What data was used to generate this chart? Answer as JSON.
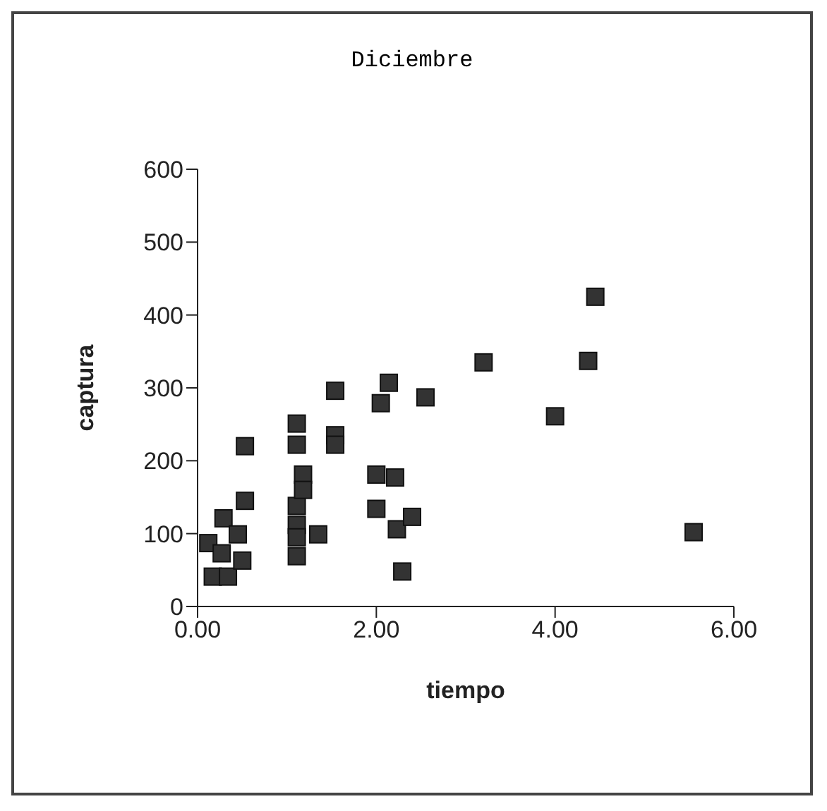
{
  "chart_data": {
    "type": "scatter",
    "title": "Diciembre",
    "xlabel": "tiempo",
    "ylabel": "captura",
    "marker": "square",
    "grid": false,
    "legend": false,
    "xlim": [
      0,
      6
    ],
    "xticks": [
      {
        "value": 0,
        "label": "0.00"
      },
      {
        "value": 2,
        "label": "2.00"
      },
      {
        "value": 4,
        "label": "4.00"
      },
      {
        "value": 6,
        "label": "6.00"
      }
    ],
    "ylim": [
      0,
      600
    ],
    "yticks": [
      0,
      100,
      200,
      300,
      400,
      500,
      600
    ],
    "series": [
      {
        "color": "#333333",
        "x": [
          0.12,
          0.17,
          0.34,
          0.29,
          0.45,
          0.27,
          0.5,
          0.53,
          0.53,
          1.11,
          1.11,
          1.11,
          1.11,
          1.11,
          1.11,
          1.18,
          1.18,
          1.35,
          1.54,
          1.54,
          1.54,
          2.14,
          2.05,
          2.0,
          2.21,
          2.0,
          2.23,
          2.4,
          2.29,
          2.55,
          3.2,
          4.0,
          4.37,
          4.45,
          5.55
        ],
        "values": [
          87,
          41,
          41,
          121,
          99,
          73,
          63,
          145,
          220,
          251,
          222,
          138,
          112,
          95,
          69,
          181,
          160,
          99,
          296,
          235,
          222,
          307,
          279,
          181,
          177,
          134,
          106,
          123,
          48,
          287,
          335,
          261,
          337,
          425,
          102
        ]
      }
    ]
  }
}
